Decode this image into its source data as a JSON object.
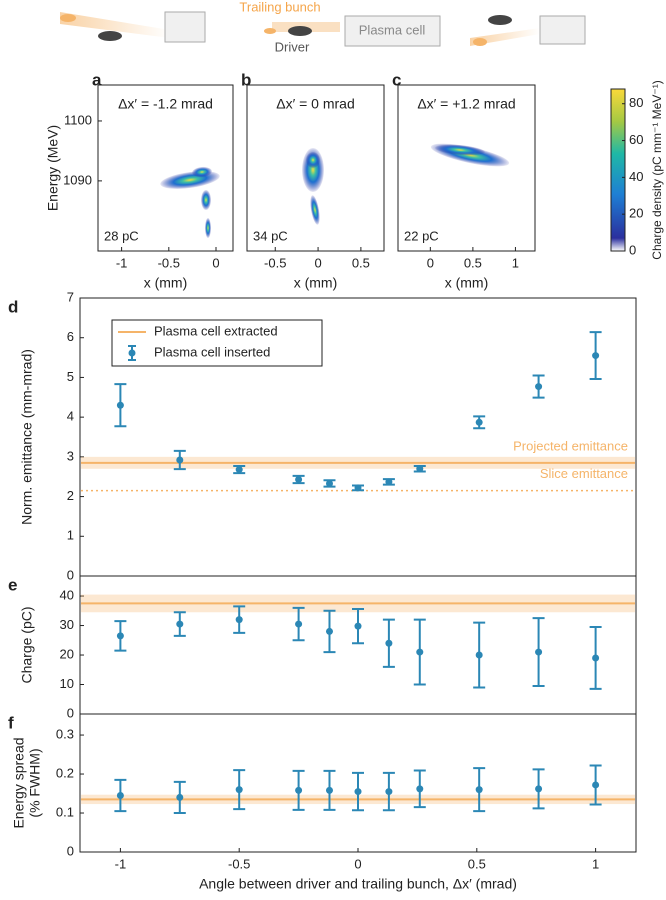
{
  "schematic": {
    "labels": [
      "Trailing bunch",
      "Plasma cell",
      "Driver"
    ]
  },
  "chart_data": [
    {
      "type": "heatmap",
      "panel": "a",
      "title": "Δx′ = -1.2 mrad",
      "annotation": "28 pC",
      "xlabel": "x (mm)",
      "ylabel": "Energy (MeV)",
      "xlim": [
        -1.25,
        0.18
      ],
      "xticks": [
        -1,
        -0.5,
        0
      ],
      "ylim": [
        1078.3,
        1106
      ],
      "yticks": [
        1090,
        1100
      ]
    },
    {
      "type": "heatmap",
      "panel": "b",
      "title": "Δx′ = 0 mrad",
      "annotation": "34 pC",
      "xlabel": "x (mm)",
      "xlim": [
        -0.83,
        0.77
      ],
      "xticks": [
        -0.5,
        0,
        0.5
      ],
      "ylim": [
        1078.3,
        1106
      ]
    },
    {
      "type": "heatmap",
      "panel": "c",
      "title": "Δx′ = +1.2 mrad",
      "annotation": "22 pC",
      "xlabel": "x (mm)",
      "xlim": [
        -0.38,
        1.23
      ],
      "xticks": [
        0,
        0.5,
        1
      ],
      "ylim": [
        1078.3,
        1106
      ]
    },
    {
      "type": "colorbar",
      "ylabel": "Charge density (pC mm⁻¹ MeV⁻¹)",
      "ylim": [
        0,
        88
      ],
      "yticks": [
        0,
        20,
        40,
        60,
        80
      ]
    },
    {
      "type": "errorbar",
      "panel": "d",
      "ylabel": [
        "Norm. emittance (mm-mrad)"
      ],
      "xlim": [
        -1.17,
        1.17
      ],
      "ylim": [
        0,
        7
      ],
      "yticks": [
        0,
        1,
        2,
        3,
        4,
        5,
        6,
        7
      ],
      "legend": "upper left",
      "x": [
        -1.0,
        -0.75,
        -0.5,
        -0.25,
        -0.12,
        0.0,
        0.13,
        0.26,
        0.51,
        0.76,
        1.0
      ],
      "series": [
        {
          "name": "Plasma cell extracted",
          "color": "#f5b469",
          "lines": [
            {
              "value": 2.85,
              "band": 0.15,
              "label": "Projected emittance"
            },
            {
              "value": 2.15,
              "label": "Slice emittance",
              "dashed": true
            }
          ]
        },
        {
          "name": "Plasma cell inserted",
          "color": "#2b87b5",
          "values": [
            4.3,
            2.92,
            2.68,
            2.43,
            2.33,
            2.22,
            2.37,
            2.7,
            3.87,
            4.77,
            5.55
          ],
          "errors": [
            0.53,
            0.23,
            0.09,
            0.09,
            0.08,
            0.06,
            0.07,
            0.07,
            0.15,
            0.28,
            0.59
          ]
        }
      ]
    },
    {
      "type": "errorbar",
      "panel": "e",
      "ylabel": [
        "Charge (pC)"
      ],
      "xlim": [
        -1.17,
        1.17
      ],
      "ylim": [
        0,
        46.8
      ],
      "yticks": [
        0,
        10,
        20,
        30,
        40
      ],
      "x": [
        -1.0,
        -0.75,
        -0.5,
        -0.25,
        -0.12,
        0.0,
        0.13,
        0.26,
        0.51,
        0.76,
        1.0
      ],
      "series": [
        {
          "color": "#f5b469",
          "lines": [
            {
              "value": 37.5,
              "band": 3
            }
          ]
        },
        {
          "color": "#2b87b5",
          "values": [
            26.5,
            30.5,
            32,
            30.5,
            28,
            29.8,
            24,
            21,
            20,
            21,
            19
          ],
          "errors": [
            5,
            4,
            4.5,
            5.5,
            7,
            5.8,
            8,
            11,
            11,
            11.5,
            10.5
          ]
        }
      ]
    },
    {
      "type": "errorbar",
      "panel": "f",
      "ylabel": [
        "Energy spread",
        "(% FWHM)"
      ],
      "xlabel": "Angle between driver and trailing bunch, Δx′ (mrad)",
      "xlim": [
        -1.17,
        1.17
      ],
      "xticks": [
        {
          "value": -1,
          "label": "-1"
        },
        {
          "value": -0.5,
          "label": "-0.5"
        },
        0,
        0.5,
        1
      ],
      "ylim": [
        0,
        0.354
      ],
      "yticks": [
        0,
        0.1,
        0.2,
        0.3
      ],
      "x": [
        -1.0,
        -0.75,
        -0.5,
        -0.25,
        -0.12,
        0.0,
        0.13,
        0.26,
        0.51,
        0.76,
        1.0
      ],
      "series": [
        {
          "color": "#f5b469",
          "lines": [
            {
              "value": 0.135,
              "band": 0.012
            }
          ]
        },
        {
          "color": "#2b87b5",
          "values": [
            0.145,
            0.14,
            0.16,
            0.158,
            0.158,
            0.155,
            0.155,
            0.162,
            0.16,
            0.162,
            0.172
          ],
          "errors": [
            0.04,
            0.04,
            0.05,
            0.05,
            0.05,
            0.048,
            0.048,
            0.047,
            0.055,
            0.05,
            0.05
          ]
        }
      ]
    }
  ]
}
